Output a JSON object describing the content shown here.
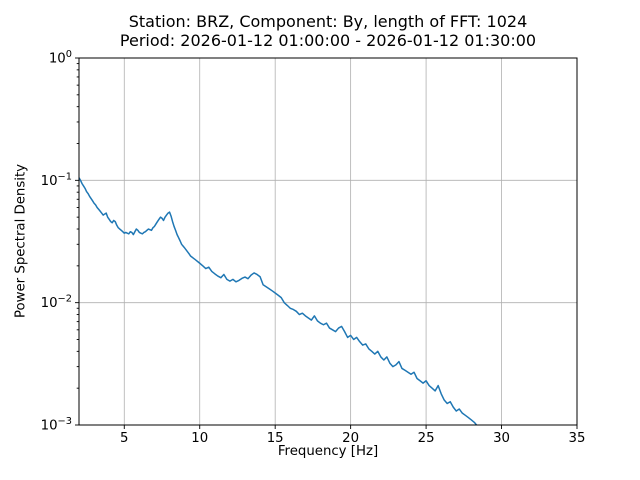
{
  "figure": {
    "title_line1": "Station: BRZ, Component: By, length of FFT: 1024",
    "title_line2": "Period: 2026-01-12 01:00:00 - 2026-01-12 01:30:00",
    "xlabel": "Frequency [Hz]",
    "ylabel": "Power Spectral Density"
  },
  "chart_data": {
    "type": "line",
    "title": "Station: BRZ, Component: By, length of FFT: 1024",
    "subtitle": "Period: 2026-01-12 01:00:00 - 2026-01-12 01:30:00",
    "xlabel": "Frequency [Hz]",
    "ylabel": "Power Spectral Density",
    "xlim": [
      2,
      35
    ],
    "ylim": [
      0.001,
      1
    ],
    "xscale": "linear",
    "yscale": "log",
    "xticks": [
      5,
      10,
      15,
      20,
      25,
      30,
      35
    ],
    "ytick_exponents": [
      0,
      -1,
      -2,
      -3
    ],
    "grid": true,
    "grid_color": "#b0b0b0",
    "line_color": "#1f77b4",
    "background": "#ffffff",
    "legend": "none",
    "series": [
      {
        "name": "PSD",
        "points": [
          [
            2.0,
            0.105
          ],
          [
            2.1,
            0.1
          ],
          [
            2.2,
            0.094
          ],
          [
            2.3,
            0.09
          ],
          [
            2.4,
            0.086
          ],
          [
            2.5,
            0.081
          ],
          [
            2.6,
            0.078
          ],
          [
            2.7,
            0.074
          ],
          [
            2.8,
            0.071
          ],
          [
            2.9,
            0.068
          ],
          [
            3.0,
            0.065
          ],
          [
            3.1,
            0.063
          ],
          [
            3.2,
            0.06
          ],
          [
            3.3,
            0.058
          ],
          [
            3.4,
            0.056
          ],
          [
            3.5,
            0.054
          ],
          [
            3.6,
            0.052
          ],
          [
            3.7,
            0.053
          ],
          [
            3.8,
            0.054
          ],
          [
            3.9,
            0.05
          ],
          [
            4.0,
            0.048
          ],
          [
            4.1,
            0.046
          ],
          [
            4.2,
            0.045
          ],
          [
            4.3,
            0.047
          ],
          [
            4.4,
            0.046
          ],
          [
            4.5,
            0.043
          ],
          [
            4.6,
            0.041
          ],
          [
            4.7,
            0.04
          ],
          [
            4.8,
            0.039
          ],
          [
            4.9,
            0.038
          ],
          [
            5.0,
            0.037
          ],
          [
            5.1,
            0.0375
          ],
          [
            5.2,
            0.037
          ],
          [
            5.3,
            0.0365
          ],
          [
            5.4,
            0.038
          ],
          [
            5.5,
            0.0375
          ],
          [
            5.6,
            0.036
          ],
          [
            5.7,
            0.038
          ],
          [
            5.8,
            0.04
          ],
          [
            5.9,
            0.039
          ],
          [
            6.0,
            0.0375
          ],
          [
            6.1,
            0.037
          ],
          [
            6.2,
            0.0365
          ],
          [
            6.3,
            0.0375
          ],
          [
            6.4,
            0.038
          ],
          [
            6.5,
            0.039
          ],
          [
            6.6,
            0.04
          ],
          [
            6.7,
            0.0395
          ],
          [
            6.8,
            0.039
          ],
          [
            6.9,
            0.041
          ],
          [
            7.0,
            0.042
          ],
          [
            7.1,
            0.044
          ],
          [
            7.2,
            0.046
          ],
          [
            7.3,
            0.048
          ],
          [
            7.4,
            0.05
          ],
          [
            7.5,
            0.049
          ],
          [
            7.6,
            0.047
          ],
          [
            7.7,
            0.05
          ],
          [
            7.8,
            0.052
          ],
          [
            7.9,
            0.054
          ],
          [
            8.0,
            0.055
          ],
          [
            8.1,
            0.051
          ],
          [
            8.2,
            0.046
          ],
          [
            8.3,
            0.042
          ],
          [
            8.4,
            0.039
          ],
          [
            8.5,
            0.036
          ],
          [
            8.6,
            0.034
          ],
          [
            8.7,
            0.032
          ],
          [
            8.8,
            0.03
          ],
          [
            8.9,
            0.029
          ],
          [
            9.0,
            0.028
          ],
          [
            9.1,
            0.027
          ],
          [
            9.2,
            0.026
          ],
          [
            9.3,
            0.025
          ],
          [
            9.4,
            0.024
          ],
          [
            9.5,
            0.0235
          ],
          [
            9.6,
            0.023
          ],
          [
            9.7,
            0.0225
          ],
          [
            9.8,
            0.022
          ],
          [
            9.9,
            0.0215
          ],
          [
            10.0,
            0.021
          ],
          [
            10.2,
            0.02
          ],
          [
            10.4,
            0.019
          ],
          [
            10.6,
            0.0195
          ],
          [
            10.8,
            0.018
          ],
          [
            11.0,
            0.0172
          ],
          [
            11.2,
            0.0165
          ],
          [
            11.4,
            0.016
          ],
          [
            11.6,
            0.017
          ],
          [
            11.8,
            0.0155
          ],
          [
            12.0,
            0.015
          ],
          [
            12.2,
            0.0155
          ],
          [
            12.4,
            0.0148
          ],
          [
            12.6,
            0.0152
          ],
          [
            12.8,
            0.0158
          ],
          [
            13.0,
            0.0162
          ],
          [
            13.2,
            0.0157
          ],
          [
            13.4,
            0.0168
          ],
          [
            13.6,
            0.0175
          ],
          [
            13.8,
            0.017
          ],
          [
            14.0,
            0.0163
          ],
          [
            14.2,
            0.014
          ],
          [
            14.4,
            0.0135
          ],
          [
            14.6,
            0.013
          ],
          [
            14.8,
            0.0125
          ],
          [
            15.0,
            0.012
          ],
          [
            15.2,
            0.0115
          ],
          [
            15.4,
            0.011
          ],
          [
            15.6,
            0.01
          ],
          [
            15.8,
            0.0095
          ],
          [
            16.0,
            0.009
          ],
          [
            16.2,
            0.0088
          ],
          [
            16.4,
            0.0085
          ],
          [
            16.6,
            0.008
          ],
          [
            16.8,
            0.0082
          ],
          [
            17.0,
            0.0078
          ],
          [
            17.2,
            0.0075
          ],
          [
            17.4,
            0.0072
          ],
          [
            17.6,
            0.0078
          ],
          [
            17.8,
            0.0071
          ],
          [
            18.0,
            0.0068
          ],
          [
            18.2,
            0.0066
          ],
          [
            18.4,
            0.0068
          ],
          [
            18.6,
            0.0062
          ],
          [
            18.8,
            0.006
          ],
          [
            19.0,
            0.0058
          ],
          [
            19.2,
            0.0062
          ],
          [
            19.4,
            0.0064
          ],
          [
            19.6,
            0.0058
          ],
          [
            19.8,
            0.0052
          ],
          [
            20.0,
            0.0054
          ],
          [
            20.2,
            0.005
          ],
          [
            20.4,
            0.0052
          ],
          [
            20.6,
            0.0048
          ],
          [
            20.8,
            0.0045
          ],
          [
            21.0,
            0.0046
          ],
          [
            21.2,
            0.0042
          ],
          [
            21.4,
            0.004
          ],
          [
            21.6,
            0.0038
          ],
          [
            21.8,
            0.004
          ],
          [
            22.0,
            0.0036
          ],
          [
            22.2,
            0.0034
          ],
          [
            22.4,
            0.0036
          ],
          [
            22.6,
            0.0032
          ],
          [
            22.8,
            0.003
          ],
          [
            23.0,
            0.0031
          ],
          [
            23.2,
            0.0033
          ],
          [
            23.4,
            0.0029
          ],
          [
            23.6,
            0.0028
          ],
          [
            23.8,
            0.0027
          ],
          [
            24.0,
            0.0026
          ],
          [
            24.2,
            0.0027
          ],
          [
            24.4,
            0.0024
          ],
          [
            24.6,
            0.0023
          ],
          [
            24.8,
            0.0022
          ],
          [
            25.0,
            0.0023
          ],
          [
            25.2,
            0.0021
          ],
          [
            25.4,
            0.002
          ],
          [
            25.6,
            0.0019
          ],
          [
            25.8,
            0.0021
          ],
          [
            26.0,
            0.0018
          ],
          [
            26.2,
            0.0016
          ],
          [
            26.4,
            0.0015
          ],
          [
            26.6,
            0.00155
          ],
          [
            26.8,
            0.0014
          ],
          [
            27.0,
            0.0013
          ],
          [
            27.2,
            0.00135
          ],
          [
            27.4,
            0.00125
          ],
          [
            27.6,
            0.0012
          ],
          [
            27.8,
            0.00115
          ],
          [
            28.0,
            0.0011
          ],
          [
            28.2,
            0.00105
          ],
          [
            28.4,
            0.00098
          ],
          [
            28.5,
            0.0009
          ]
        ]
      }
    ]
  }
}
